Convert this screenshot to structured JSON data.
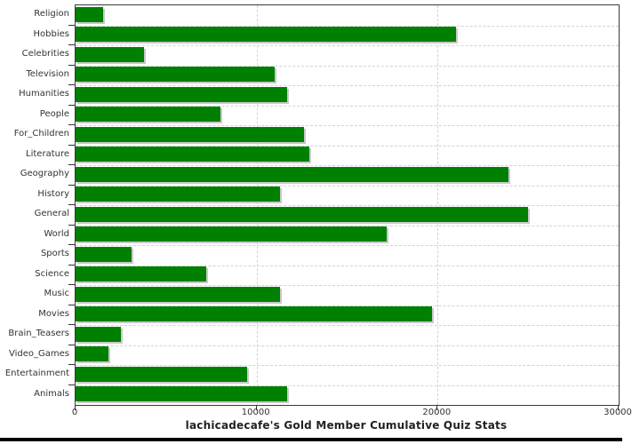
{
  "chart_data": {
    "type": "bar",
    "orientation": "horizontal",
    "title": "lachicadecafe's Gold Member Cumulative Quiz Stats",
    "categories": [
      "Religion",
      "Hobbies",
      "Celebrities",
      "Television",
      "Humanities",
      "People",
      "For_Children",
      "Literature",
      "Geography",
      "History",
      "General",
      "World",
      "Sports",
      "Science",
      "Music",
      "Movies",
      "Brain_Teasers",
      "Video_Games",
      "Entertainment",
      "Animals"
    ],
    "values": [
      1500,
      21000,
      3800,
      11000,
      11700,
      8000,
      12600,
      12900,
      23900,
      11300,
      25000,
      17200,
      3100,
      7200,
      11300,
      19700,
      2500,
      1800,
      9500,
      11700
    ],
    "xlabel": "",
    "ylabel": "",
    "xlim": [
      0,
      30000
    ],
    "x_ticks": [
      0,
      10000,
      20000,
      30000
    ],
    "x_tick_labels": [
      "0",
      "10000",
      "20000",
      "30000"
    ],
    "grid": true,
    "legend": false,
    "bar_color": "#008000",
    "shadow_color": "#c9c9c9",
    "gridline_color": "#d2d2d2",
    "axis_color": "#3a3a3a",
    "text_color": "#333333"
  }
}
